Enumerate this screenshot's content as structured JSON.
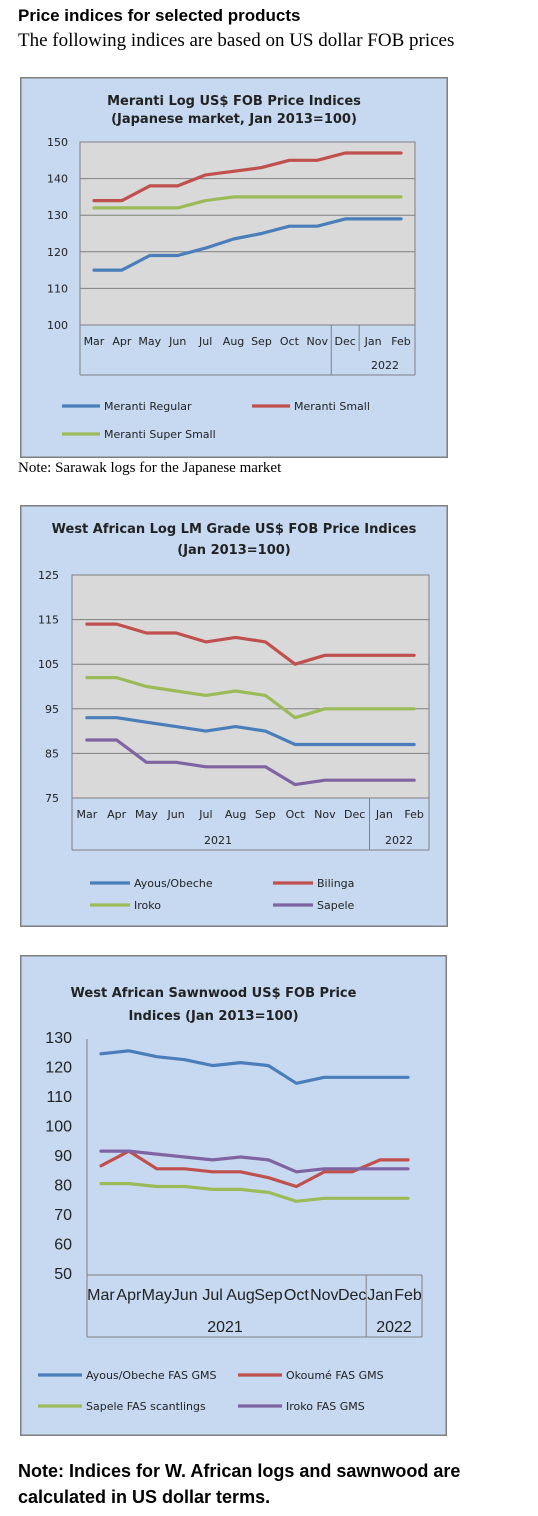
{
  "header": {
    "title": "Price indices for selected products",
    "subtitle": "The following indices are based on US dollar FOB prices"
  },
  "notes": {
    "note1": "Note: Sarawak logs for the Japanese market",
    "note2": "Note: Indices for W. African logs and sawnwood are calculated in US dollar terms."
  },
  "chart_data": [
    {
      "type": "line",
      "title": "Meranti Log US$ FOB Price Indices",
      "subtitle": "(Japanese market, Jan 2013=100)",
      "categories": [
        "Mar",
        "Apr",
        "May",
        "Jun",
        "Jul",
        "Aug",
        "Sep",
        "Oct",
        "Nov",
        "Dec",
        "Jan",
        "Feb"
      ],
      "year_labels": [
        "2022"
      ],
      "ylim": [
        100,
        150
      ],
      "yticks": [
        100,
        110,
        120,
        130,
        140,
        150
      ],
      "grid": true,
      "legend_position": "bottom",
      "series": [
        {
          "name": "Meranti Regular",
          "color": "#4a7ebb",
          "values": [
            115,
            115,
            119,
            119,
            121,
            123.5,
            125,
            127,
            127,
            129,
            129,
            129
          ]
        },
        {
          "name": "Meranti Small",
          "color": "#c0504d",
          "values": [
            134,
            134,
            138,
            138,
            141,
            142,
            143,
            145,
            145,
            147,
            147,
            147
          ]
        },
        {
          "name": "Meranti Super Small",
          "color": "#9bbb59",
          "values": [
            132,
            132,
            132,
            132,
            134,
            135,
            135,
            135,
            135,
            135,
            135,
            135
          ]
        }
      ]
    },
    {
      "type": "line",
      "title": "West African Log LM Grade US$ FOB Price Indices",
      "subtitle": "(Jan 2013=100)",
      "categories": [
        "Mar",
        "Apr",
        "May",
        "Jun",
        "Jul",
        "Aug",
        "Sep",
        "Oct",
        "Nov",
        "Dec",
        "Jan",
        "Feb"
      ],
      "year_labels": [
        "2021",
        "2022"
      ],
      "ylim": [
        75,
        125
      ],
      "yticks": [
        75,
        85,
        95,
        105,
        115,
        125
      ],
      "grid": true,
      "legend_position": "bottom",
      "series": [
        {
          "name": "Ayous/Obeche",
          "color": "#4a7ebb",
          "values": [
            93,
            93,
            92,
            91,
            90,
            91,
            90,
            87,
            87,
            87,
            87,
            87
          ]
        },
        {
          "name": "Bilinga",
          "color": "#c0504d",
          "values": [
            114,
            114,
            112,
            112,
            110,
            111,
            110,
            105,
            107,
            107,
            107,
            107
          ]
        },
        {
          "name": "Iroko",
          "color": "#9bbb59",
          "values": [
            102,
            102,
            100,
            99,
            98,
            99,
            98,
            93,
            95,
            95,
            95,
            95
          ]
        },
        {
          "name": "Sapele",
          "color": "#8064a2",
          "values": [
            88,
            88,
            83,
            83,
            82,
            82,
            82,
            78,
            79,
            79,
            79,
            79
          ]
        }
      ]
    },
    {
      "type": "line",
      "title": "West African Sawnwood US$ FOB Price",
      "subtitle": "Indices (Jan 2013=100)",
      "categories": [
        "Mar",
        "Apr",
        "May",
        "Jun",
        "Jul",
        "Aug",
        "Sep",
        "Oct",
        "Nov",
        "Dec",
        "Jan",
        "Feb"
      ],
      "year_labels": [
        "2021",
        "2022"
      ],
      "ylim": [
        50,
        130
      ],
      "yticks": [
        50,
        60,
        70,
        80,
        90,
        100,
        110,
        120,
        130
      ],
      "grid": false,
      "legend_position": "bottom",
      "series": [
        {
          "name": "Ayous/Obeche FAS GMS",
          "color": "#4a7ebb",
          "values": [
            125,
            126,
            124,
            123,
            121,
            122,
            121,
            115,
            117,
            117,
            117,
            117
          ]
        },
        {
          "name": "Okoumé FAS GMS",
          "color": "#c0504d",
          "values": [
            87,
            92,
            86,
            86,
            85,
            85,
            83,
            80,
            85,
            85,
            89,
            89
          ]
        },
        {
          "name": "Sapele FAS scantlings",
          "color": "#9bbb59",
          "values": [
            81,
            81,
            80,
            80,
            79,
            79,
            78,
            75,
            76,
            76,
            76,
            76
          ]
        },
        {
          "name": "Iroko FAS GMS",
          "color": "#8064a2",
          "values": [
            92,
            92,
            91,
            90,
            89,
            90,
            89,
            85,
            86,
            86,
            86,
            86
          ]
        }
      ]
    }
  ]
}
